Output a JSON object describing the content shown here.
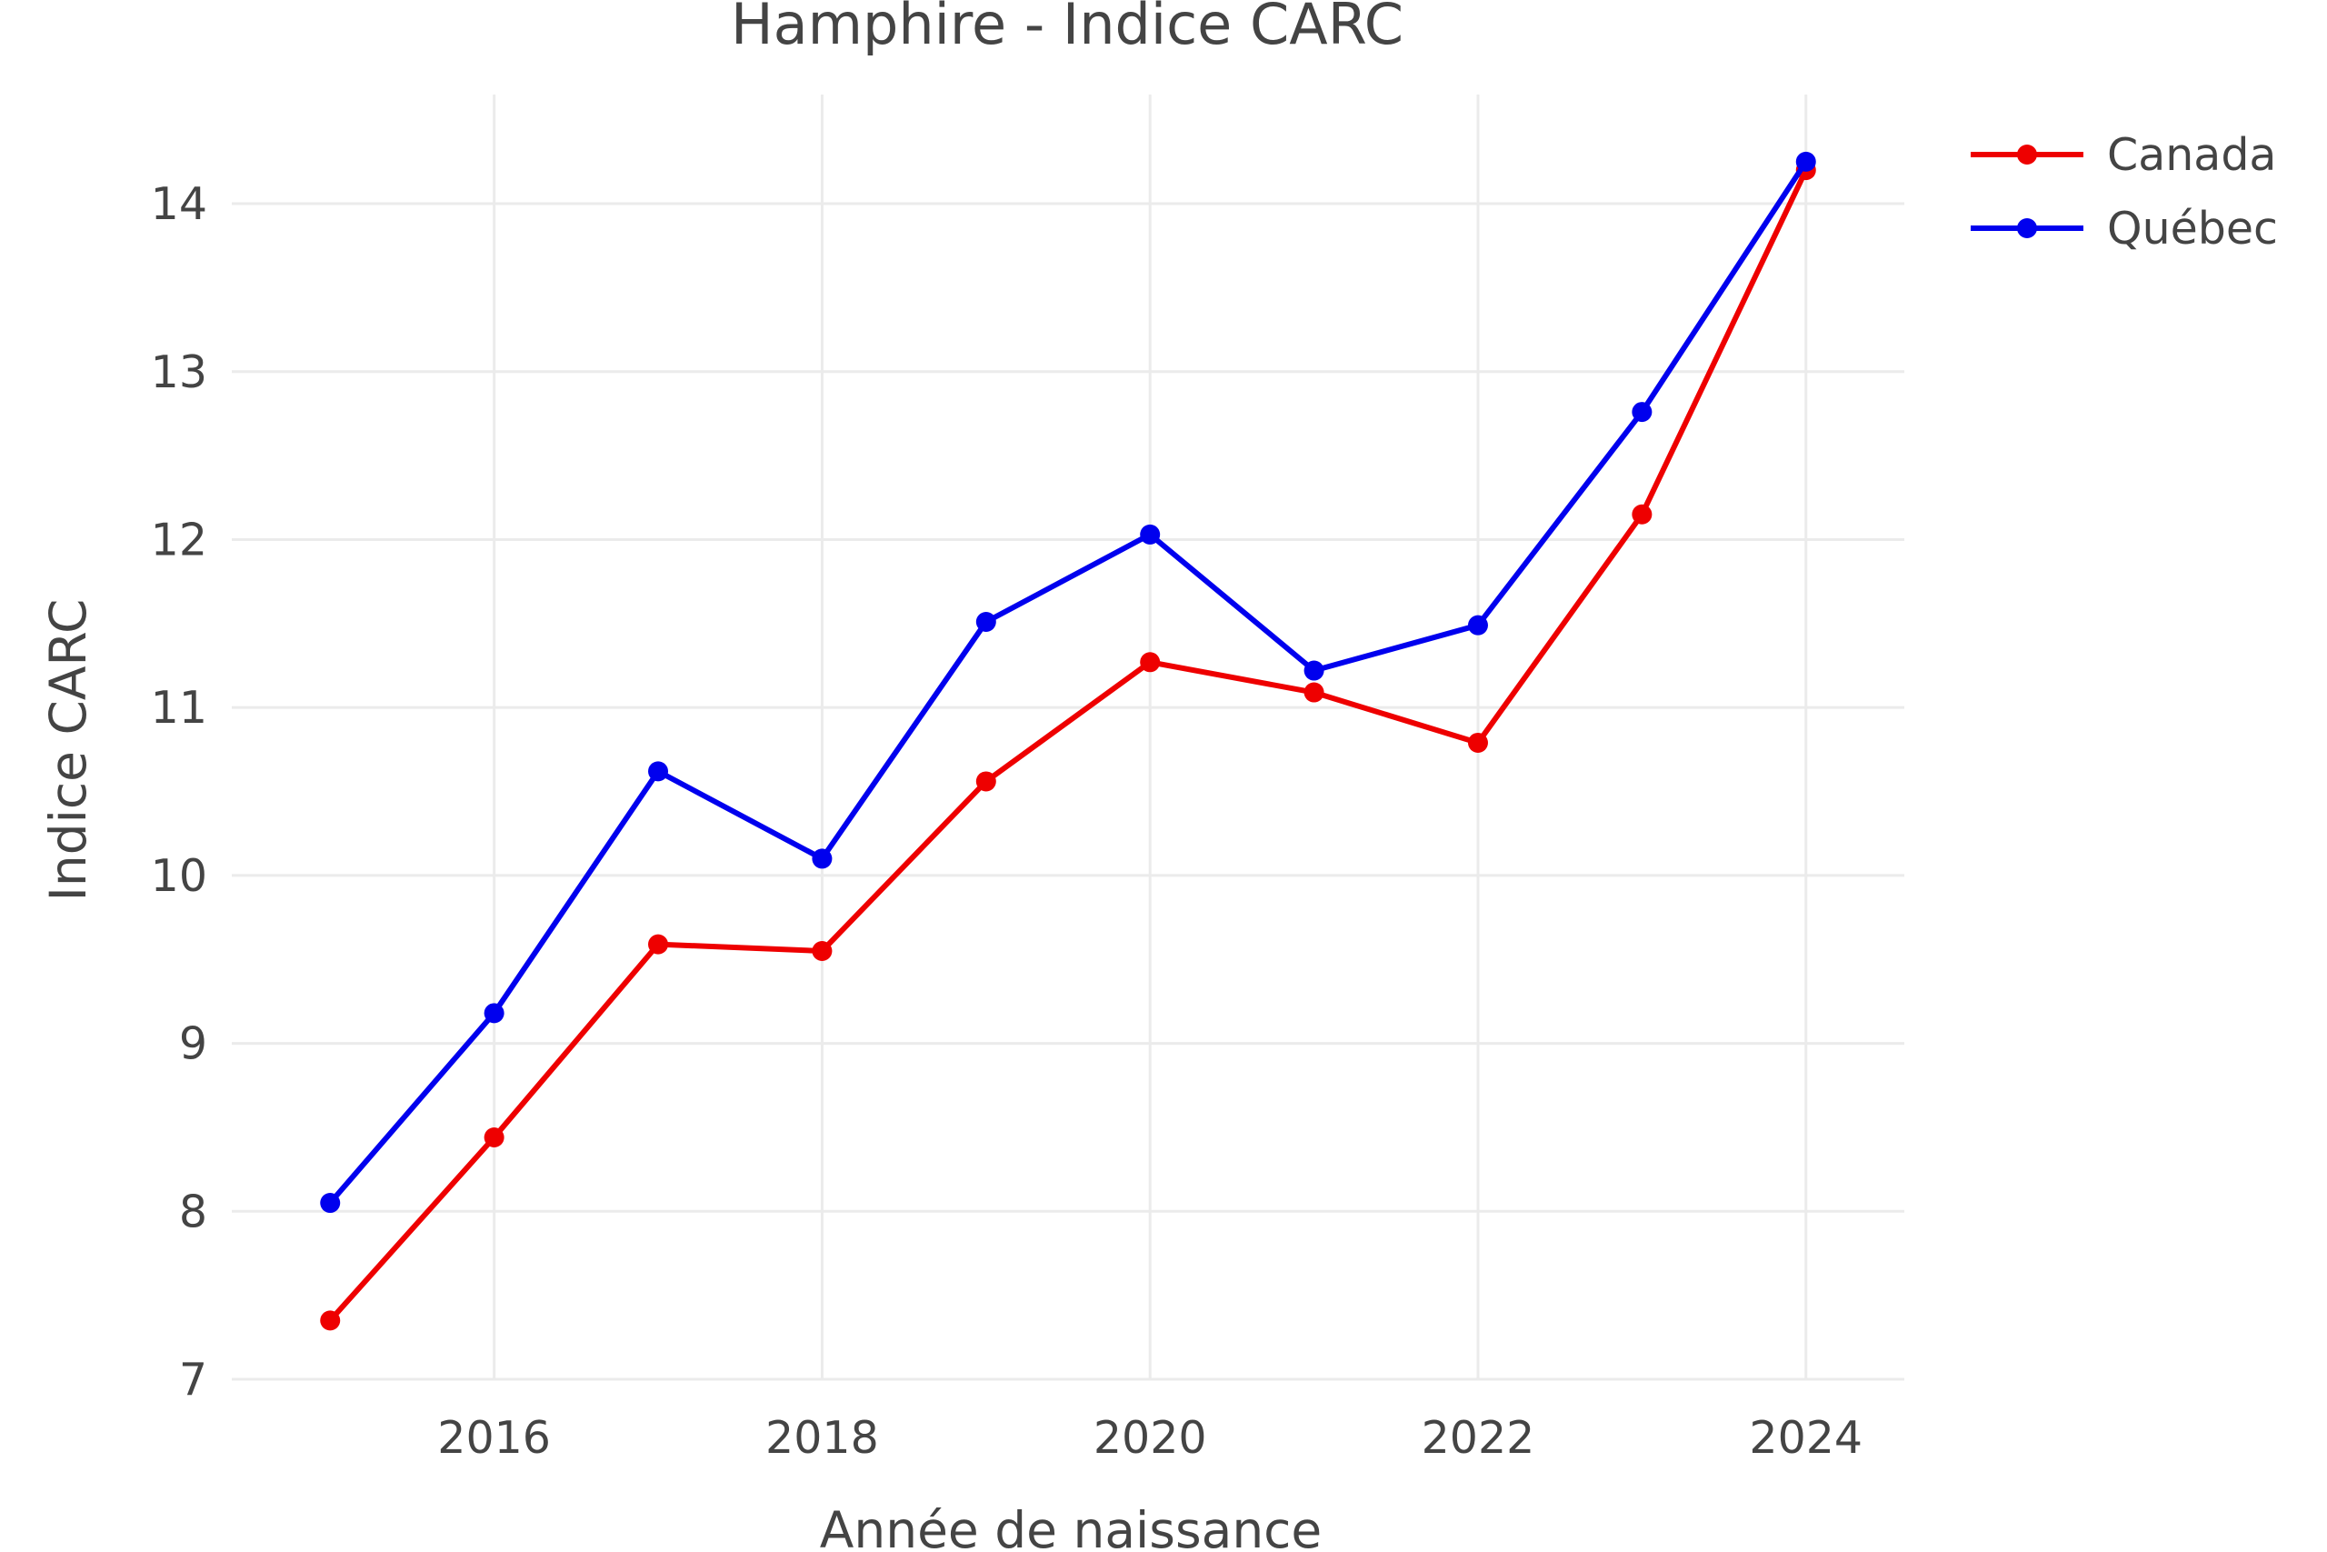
{
  "chart_data": {
    "type": "line",
    "title": "Hamphire - Indice CARC",
    "xlabel": "Année de naissance",
    "ylabel": "Indice CARC",
    "x": [
      2015,
      2016,
      2017,
      2018,
      2019,
      2020,
      2021,
      2022,
      2023,
      2024
    ],
    "xlim": [
      2014.4,
      2024.6
    ],
    "ylim": [
      7,
      14.65
    ],
    "x_ticks": [
      2016,
      2018,
      2020,
      2022,
      2024
    ],
    "y_ticks": [
      7,
      8,
      9,
      10,
      11,
      12,
      13,
      14
    ],
    "grid": true,
    "legend_position": "top-right",
    "series": [
      {
        "name": "Canada",
        "color": "#ee0000",
        "values": [
          7.35,
          8.44,
          9.59,
          9.55,
          10.56,
          11.27,
          11.09,
          10.79,
          12.15,
          14.2
        ]
      },
      {
        "name": "Québec",
        "color": "#0000ee",
        "values": [
          8.05,
          9.18,
          10.62,
          10.1,
          11.51,
          12.03,
          11.22,
          11.49,
          12.76,
          14.25
        ]
      }
    ]
  }
}
